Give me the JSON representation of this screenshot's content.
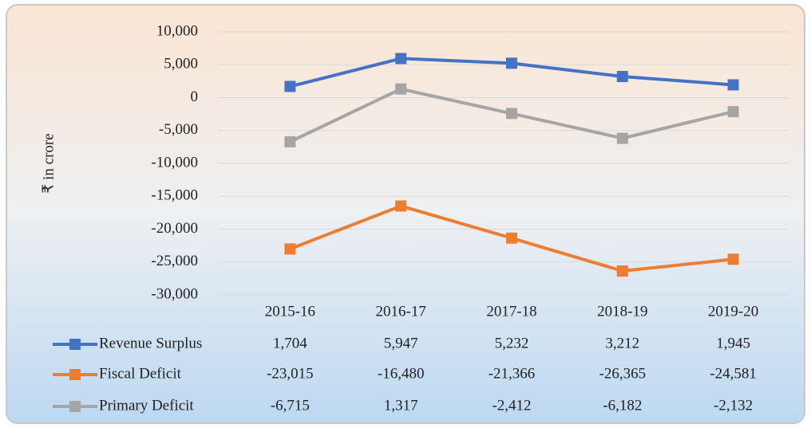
{
  "chart_data": {
    "type": "line",
    "y_label": "₹ in crore",
    "categories": [
      "2015-16",
      "2016-17",
      "2017-18",
      "2018-19",
      "2019-20"
    ],
    "series": [
      {
        "name": "Revenue Surplus",
        "color": "#4472c4",
        "values": [
          1704,
          5947,
          5232,
          3212,
          1945
        ],
        "value_labels": [
          "1,704",
          "5,947",
          "5,232",
          "3,212",
          "1,945"
        ]
      },
      {
        "name": "Fiscal Deficit",
        "color": "#ed7d31",
        "values": [
          -23015,
          -16480,
          -21366,
          -26365,
          -24581
        ],
        "value_labels": [
          "-23,015",
          "-16,480",
          "-21,366",
          "-26,365",
          "-24,581"
        ]
      },
      {
        "name": "Primary Deficit",
        "color": "#a5a5a5",
        "values": [
          -6715,
          1317,
          -2412,
          -6182,
          -2132
        ],
        "value_labels": [
          "-6,715",
          "1,317",
          "-2,412",
          "-6,182",
          "-2,132"
        ]
      }
    ],
    "ylim": [
      -30000,
      10000
    ],
    "yticks": [
      {
        "value": 10000,
        "label": "10,000"
      },
      {
        "value": 5000,
        "label": "5,000"
      },
      0,
      {
        "value": -5000,
        "label": "-5,000"
      },
      {
        "value": -10000,
        "label": "-10,000"
      },
      {
        "value": -15000,
        "label": "-15,000"
      },
      {
        "value": -20000,
        "label": "-20,000"
      },
      {
        "value": -25000,
        "label": "-25,000"
      },
      {
        "value": -30000,
        "label": "-30,000"
      }
    ],
    "grid": true
  }
}
